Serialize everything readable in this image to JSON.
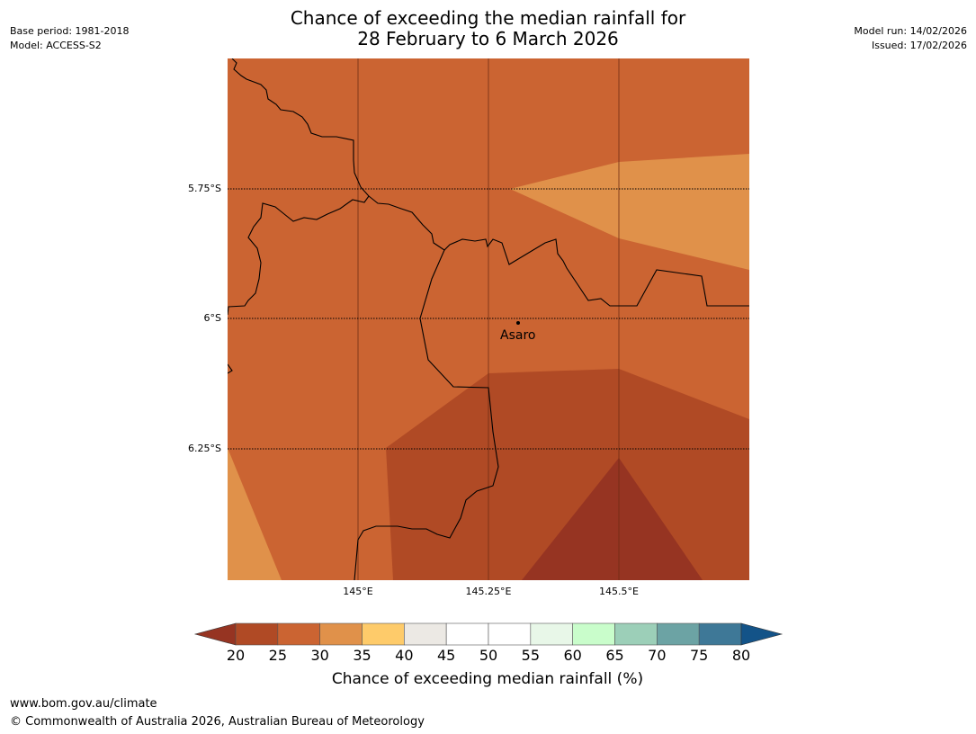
{
  "header": {
    "title_line1": "Chance of exceeding the median rainfall for",
    "title_line2": "28 February to 6 March 2026",
    "base_period": "Base period: 1981-2018",
    "model": "Model: ACCESS-S2",
    "model_run": "Model run: 14/02/2026",
    "issued": "Issued: 17/02/2026"
  },
  "map": {
    "lat_labels": [
      "5.75°S",
      "6°S",
      "6.25°S"
    ],
    "lon_labels": [
      "145°E",
      "145.25°E",
      "145.5°E"
    ],
    "place": "Asaro",
    "lat_range": [
      -6.5,
      -5.5
    ],
    "lon_range": [
      144.75,
      145.75
    ]
  },
  "colorbar": {
    "ticks": [
      "20",
      "25",
      "30",
      "35",
      "40",
      "45",
      "50",
      "55",
      "60",
      "65",
      "70",
      "75",
      "80"
    ],
    "colors": [
      "#b04a25",
      "#cb6432",
      "#e0914a",
      "#fecb6a",
      "#ece9e4",
      "#ffffff",
      "#ffffff",
      "#e8f7e8",
      "#c9fdcb",
      "#9ccfb8",
      "#6ca3a4",
      "#3e7897"
    ],
    "under_color": "#963422",
    "over_color": "#135388",
    "label": "Chance of exceeding median rainfall (%)"
  },
  "footer": {
    "url": "www.bom.gov.au/climate",
    "copyright": "© Commonwealth of Australia 2026, Australian Bureau of Meteorology"
  }
}
